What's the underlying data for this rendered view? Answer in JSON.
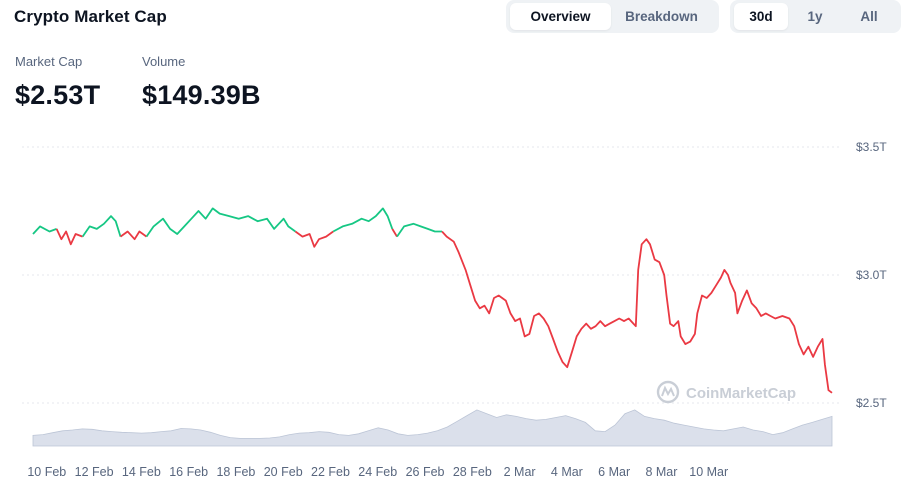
{
  "header": {
    "title": "Crypto Market Cap",
    "view_tabs": [
      {
        "label": "Overview",
        "active": true
      },
      {
        "label": "Breakdown",
        "active": false
      }
    ],
    "range_tabs": [
      {
        "label": "30d",
        "active": true
      },
      {
        "label": "1y",
        "active": false
      },
      {
        "label": "All",
        "active": false
      }
    ]
  },
  "stats": {
    "market_cap_label": "Market Cap",
    "market_cap_value": "$2.53T",
    "volume_label": "Volume",
    "volume_value": "$149.39B"
  },
  "watermark": "CoinMarketCap",
  "colors": {
    "up": "#16c784",
    "down": "#ea3943",
    "volume": "#cfd6e4",
    "grid": "#e4e7ec"
  },
  "chart_data": {
    "type": "line",
    "ylim": [
      2.4,
      3.55
    ],
    "y_ticks": [
      {
        "value": 3.5,
        "label": "$3.5T"
      },
      {
        "value": 3.0,
        "label": "$3.0T"
      },
      {
        "value": 2.5,
        "label": "$2.5T"
      }
    ],
    "x_ticks": [
      "10 Feb",
      "12 Feb",
      "14 Feb",
      "16 Feb",
      "18 Feb",
      "20 Feb",
      "22 Feb",
      "24 Feb",
      "26 Feb",
      "28 Feb",
      "2 Mar",
      "4 Mar",
      "6 Mar",
      "8 Mar",
      "10 Mar"
    ],
    "x_start_day": 9.5,
    "x_end_day": 39.75,
    "baseline": 3.17,
    "series": [
      {
        "points": [
          [
            9.5,
            3.16
          ],
          [
            9.8,
            3.19
          ],
          [
            10.2,
            3.17
          ],
          [
            10.5,
            3.18
          ],
          [
            10.7,
            3.14
          ],
          [
            10.9,
            3.17
          ],
          [
            11.1,
            3.12
          ],
          [
            11.3,
            3.16
          ],
          [
            11.6,
            3.15
          ],
          [
            11.9,
            3.19
          ],
          [
            12.2,
            3.18
          ],
          [
            12.5,
            3.2
          ],
          [
            12.8,
            3.23
          ],
          [
            13.0,
            3.21
          ],
          [
            13.2,
            3.15
          ],
          [
            13.5,
            3.17
          ],
          [
            13.8,
            3.14
          ],
          [
            14.0,
            3.17
          ],
          [
            14.3,
            3.15
          ],
          [
            14.6,
            3.19
          ],
          [
            15.0,
            3.22
          ],
          [
            15.3,
            3.18
          ],
          [
            15.6,
            3.16
          ],
          [
            15.9,
            3.19
          ],
          [
            16.2,
            3.22
          ],
          [
            16.5,
            3.25
          ],
          [
            16.8,
            3.22
          ],
          [
            17.1,
            3.26
          ],
          [
            17.4,
            3.24
          ],
          [
            17.8,
            3.23
          ],
          [
            18.2,
            3.22
          ],
          [
            18.6,
            3.23
          ],
          [
            19.0,
            3.21
          ],
          [
            19.4,
            3.22
          ],
          [
            19.7,
            3.18
          ],
          [
            19.9,
            3.2
          ],
          [
            20.1,
            3.22
          ],
          [
            20.3,
            3.19
          ],
          [
            20.6,
            3.17
          ],
          [
            20.9,
            3.15
          ],
          [
            21.2,
            3.16
          ],
          [
            21.4,
            3.11
          ],
          [
            21.6,
            3.14
          ],
          [
            21.9,
            3.15
          ],
          [
            22.2,
            3.17
          ],
          [
            22.6,
            3.19
          ],
          [
            23.0,
            3.2
          ],
          [
            23.4,
            3.22
          ],
          [
            23.7,
            3.21
          ],
          [
            24.0,
            3.23
          ],
          [
            24.3,
            3.26
          ],
          [
            24.5,
            3.23
          ],
          [
            24.7,
            3.18
          ],
          [
            24.9,
            3.15
          ],
          [
            25.2,
            3.19
          ],
          [
            25.6,
            3.2
          ],
          [
            25.9,
            3.19
          ],
          [
            26.2,
            3.18
          ],
          [
            26.5,
            3.17
          ],
          [
            26.8,
            3.17
          ],
          [
            27.0,
            3.15
          ],
          [
            27.3,
            3.13
          ],
          [
            27.5,
            3.09
          ],
          [
            27.8,
            3.02
          ],
          [
            28.0,
            2.96
          ],
          [
            28.2,
            2.9
          ],
          [
            28.4,
            2.87
          ],
          [
            28.6,
            2.88
          ],
          [
            28.8,
            2.85
          ],
          [
            29.0,
            2.91
          ],
          [
            29.2,
            2.92
          ],
          [
            29.5,
            2.9
          ],
          [
            29.7,
            2.85
          ],
          [
            29.9,
            2.82
          ],
          [
            30.1,
            2.83
          ],
          [
            30.3,
            2.76
          ],
          [
            30.5,
            2.77
          ],
          [
            30.7,
            2.84
          ],
          [
            30.9,
            2.85
          ],
          [
            31.1,
            2.83
          ],
          [
            31.3,
            2.8
          ],
          [
            31.5,
            2.75
          ],
          [
            31.7,
            2.7
          ],
          [
            31.9,
            2.66
          ],
          [
            32.1,
            2.64
          ],
          [
            32.3,
            2.7
          ],
          [
            32.5,
            2.76
          ],
          [
            32.7,
            2.79
          ],
          [
            32.9,
            2.81
          ],
          [
            33.1,
            2.79
          ],
          [
            33.3,
            2.8
          ],
          [
            33.5,
            2.82
          ],
          [
            33.7,
            2.8
          ],
          [
            33.9,
            2.81
          ],
          [
            34.1,
            2.82
          ],
          [
            34.3,
            2.83
          ],
          [
            34.5,
            2.82
          ],
          [
            34.7,
            2.83
          ],
          [
            34.9,
            2.81
          ],
          [
            35.0,
            2.8
          ],
          [
            35.1,
            3.02
          ],
          [
            35.25,
            3.12
          ],
          [
            35.45,
            3.14
          ],
          [
            35.6,
            3.12
          ],
          [
            35.8,
            3.06
          ],
          [
            36.0,
            3.05
          ],
          [
            36.2,
            3.0
          ],
          [
            36.3,
            2.92
          ],
          [
            36.45,
            2.81
          ],
          [
            36.6,
            2.8
          ],
          [
            36.8,
            2.82
          ],
          [
            36.9,
            2.76
          ],
          [
            37.1,
            2.73
          ],
          [
            37.3,
            2.74
          ],
          [
            37.5,
            2.77
          ],
          [
            37.6,
            2.85
          ],
          [
            37.8,
            2.92
          ],
          [
            38.0,
            2.91
          ],
          [
            38.2,
            2.93
          ],
          [
            38.4,
            2.96
          ],
          [
            38.6,
            2.99
          ],
          [
            38.75,
            3.02
          ],
          [
            38.9,
            3.0
          ],
          [
            39.0,
            2.97
          ],
          [
            39.2,
            2.93
          ],
          [
            39.3,
            2.85
          ],
          [
            39.5,
            2.9
          ],
          [
            39.7,
            2.94
          ],
          [
            39.9,
            2.89
          ],
          [
            40.1,
            2.87
          ],
          [
            40.3,
            2.84
          ],
          [
            40.5,
            2.85
          ],
          [
            40.7,
            2.84
          ],
          [
            40.9,
            2.83
          ],
          [
            41.2,
            2.84
          ],
          [
            41.5,
            2.83
          ],
          [
            41.7,
            2.8
          ],
          [
            41.9,
            2.73
          ],
          [
            42.1,
            2.69
          ],
          [
            42.3,
            2.72
          ],
          [
            42.5,
            2.68
          ],
          [
            42.7,
            2.72
          ],
          [
            42.9,
            2.75
          ],
          [
            43.0,
            2.65
          ],
          [
            43.15,
            2.55
          ],
          [
            43.3,
            2.54
          ]
        ]
      }
    ],
    "volume_relative": [
      0.28,
      0.3,
      0.35,
      0.4,
      0.42,
      0.45,
      0.44,
      0.4,
      0.38,
      0.36,
      0.35,
      0.34,
      0.35,
      0.38,
      0.4,
      0.46,
      0.45,
      0.42,
      0.36,
      0.28,
      0.22,
      0.2,
      0.2,
      0.2,
      0.21,
      0.24,
      0.3,
      0.34,
      0.35,
      0.38,
      0.36,
      0.3,
      0.28,
      0.32,
      0.4,
      0.48,
      0.42,
      0.32,
      0.28,
      0.3,
      0.34,
      0.4,
      0.5,
      0.65,
      0.8,
      0.95,
      0.85,
      0.75,
      0.82,
      0.78,
      0.72,
      0.68,
      0.7,
      0.75,
      0.8,
      0.72,
      0.62,
      0.4,
      0.38,
      0.55,
      0.85,
      0.95,
      0.78,
      0.72,
      0.68,
      0.6,
      0.55,
      0.5,
      0.45,
      0.42,
      0.4,
      0.45,
      0.5,
      0.42,
      0.38,
      0.3,
      0.35,
      0.45,
      0.55,
      0.62,
      0.7,
      0.78
    ]
  }
}
